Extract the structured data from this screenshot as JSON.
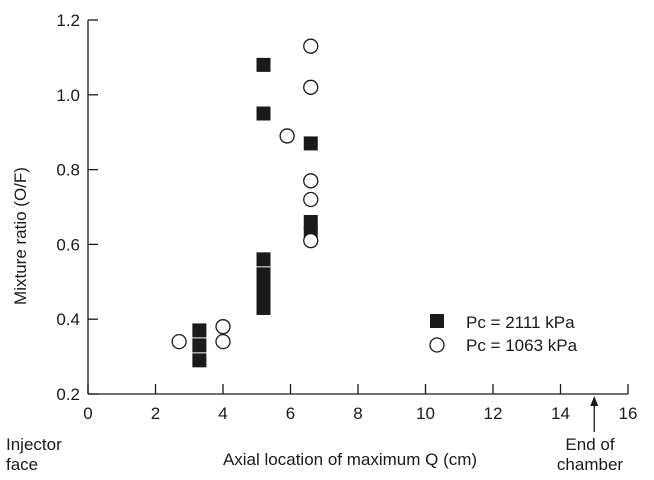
{
  "chart_data": {
    "type": "scatter",
    "title": "",
    "xlabel": "Axial location of maximum Q (cm)",
    "ylabel": "Mixture ratio (O/F)",
    "xlim": [
      0,
      16
    ],
    "ylim": [
      0.2,
      1.2
    ],
    "xticks": [
      0,
      2,
      4,
      6,
      8,
      10,
      12,
      14,
      16
    ],
    "yticks": [
      0.2,
      0.4,
      0.6,
      0.8,
      1.0,
      1.2
    ],
    "xtick_labels": [
      "0",
      "2",
      "4",
      "6",
      "8",
      "10",
      "12",
      "14",
      "16"
    ],
    "ytick_labels": [
      "0.2",
      "0.4",
      "0.6",
      "0.8",
      "1.0",
      "1.2"
    ],
    "grid": false,
    "legend_position": "lower-right",
    "series": [
      {
        "name": "Pc = 2111 kPa",
        "marker": "filled-square",
        "color": "#1a1a1a",
        "points": [
          {
            "x": 3.3,
            "y": 0.37
          },
          {
            "x": 3.3,
            "y": 0.33
          },
          {
            "x": 3.3,
            "y": 0.29
          },
          {
            "x": 5.2,
            "y": 1.08
          },
          {
            "x": 5.2,
            "y": 0.95
          },
          {
            "x": 5.2,
            "y": 0.56
          },
          {
            "x": 5.2,
            "y": 0.52
          },
          {
            "x": 5.2,
            "y": 0.49
          },
          {
            "x": 5.2,
            "y": 0.46
          },
          {
            "x": 5.2,
            "y": 0.43
          },
          {
            "x": 6.6,
            "y": 0.87
          },
          {
            "x": 6.6,
            "y": 0.66
          },
          {
            "x": 6.6,
            "y": 0.63
          }
        ]
      },
      {
        "name": "Pc = 1063 kPa",
        "marker": "open-circle",
        "color": "#1a1a1a",
        "points": [
          {
            "x": 2.7,
            "y": 0.34
          },
          {
            "x": 4.0,
            "y": 0.38
          },
          {
            "x": 4.0,
            "y": 0.34
          },
          {
            "x": 5.9,
            "y": 0.89
          },
          {
            "x": 6.6,
            "y": 1.13
          },
          {
            "x": 6.6,
            "y": 1.02
          },
          {
            "x": 6.6,
            "y": 0.77
          },
          {
            "x": 6.6,
            "y": 0.72
          },
          {
            "x": 6.6,
            "y": 0.61
          }
        ]
      }
    ],
    "annotations": {
      "left_label": "Injector\nface",
      "right_label": "End of\nchamber",
      "right_label_x": 15.0
    }
  }
}
